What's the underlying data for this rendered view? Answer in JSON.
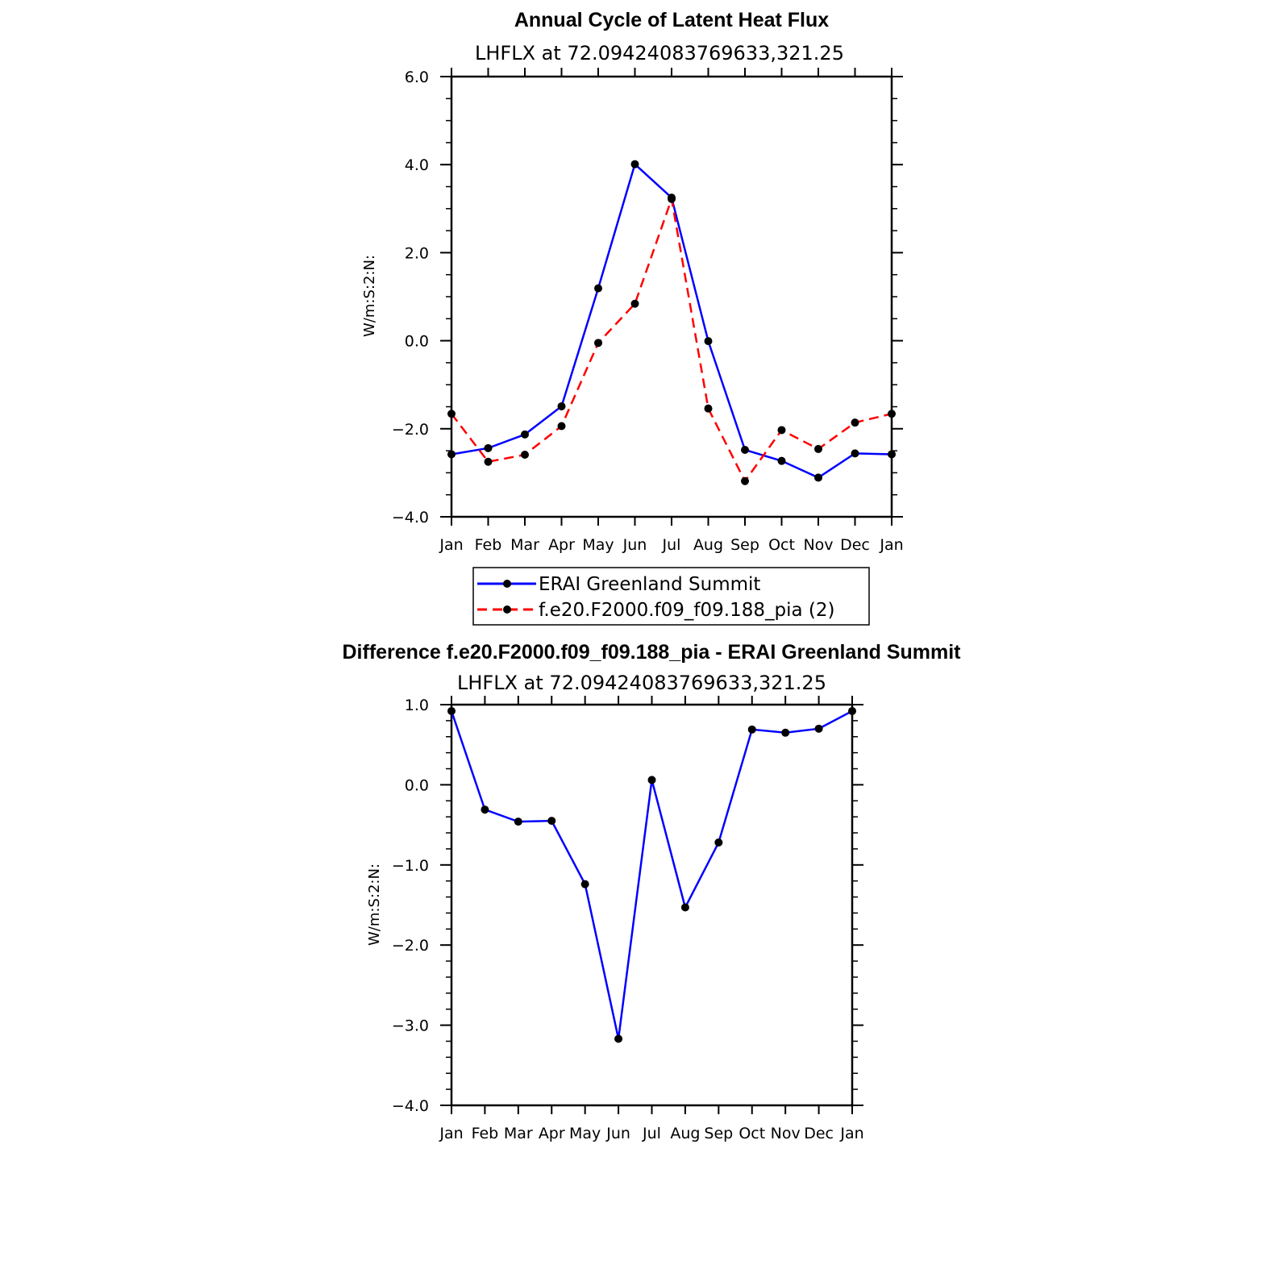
{
  "chart_data": [
    {
      "type": "line",
      "title": "Annual Cycle of Latent Heat Flux",
      "subtitle": "LHFLX  at  72.09424083769633,321.25",
      "ylabel": "W/m:S:2:N:",
      "xlabel": "",
      "ylim": [
        -4.0,
        6.0
      ],
      "yticks": [
        -4.0,
        -2.0,
        0.0,
        2.0,
        4.0,
        6.0
      ],
      "ytick_labels": [
        "−4.0",
        "−2.0",
        "0.0",
        "2.0",
        "4.0",
        "6.0"
      ],
      "categories": [
        "Jan",
        "Feb",
        "Mar",
        "Apr",
        "May",
        "Jun",
        "Jul",
        "Aug",
        "Sep",
        "Oct",
        "Nov",
        "Dec",
        "Jan"
      ],
      "legend_position": "bottom",
      "series": [
        {
          "name": "ERAI Greenland Summit",
          "color": "#0000ff",
          "dash": "solid",
          "values": [
            -2.58,
            -2.44,
            -2.13,
            -1.49,
            1.19,
            4.01,
            3.25,
            -0.01,
            -2.48,
            -2.73,
            -3.11,
            -2.56,
            -2.58
          ]
        },
        {
          "name": "f.e20.F2000.f09_f09.188_pia (2)",
          "color": "#ff0000",
          "dash": "dashed",
          "values": [
            -1.66,
            -2.75,
            -2.59,
            -1.94,
            -0.05,
            0.84,
            3.22,
            -1.54,
            -3.19,
            -2.03,
            -2.46,
            -1.86,
            -1.66
          ]
        }
      ]
    },
    {
      "type": "line",
      "title": "Difference f.e20.F2000.f09_f09.188_pia - ERAI Greenland Summit",
      "subtitle": "LHFLX  at  72.09424083769633,321.25",
      "ylabel": "W/m:S:2:N:",
      "xlabel": "",
      "ylim": [
        -4.0,
        1.0
      ],
      "yticks": [
        -4.0,
        -3.0,
        -2.0,
        -1.0,
        0.0,
        1.0
      ],
      "ytick_labels": [
        "−4.0",
        "−3.0",
        "−2.0",
        "−1.0",
        "0.0",
        "1.0"
      ],
      "categories": [
        "Jan",
        "Feb",
        "Mar",
        "Apr",
        "May",
        "Jun",
        "Jul",
        "Aug",
        "Sep",
        "Oct",
        "Nov",
        "Dec",
        "Jan"
      ],
      "series": [
        {
          "name": "Difference",
          "color": "#0000ff",
          "dash": "solid",
          "values": [
            0.92,
            -0.31,
            -0.46,
            -0.45,
            -1.24,
            -3.17,
            0.06,
            -1.53,
            -0.72,
            0.69,
            0.65,
            0.7,
            0.92
          ]
        }
      ]
    }
  ]
}
